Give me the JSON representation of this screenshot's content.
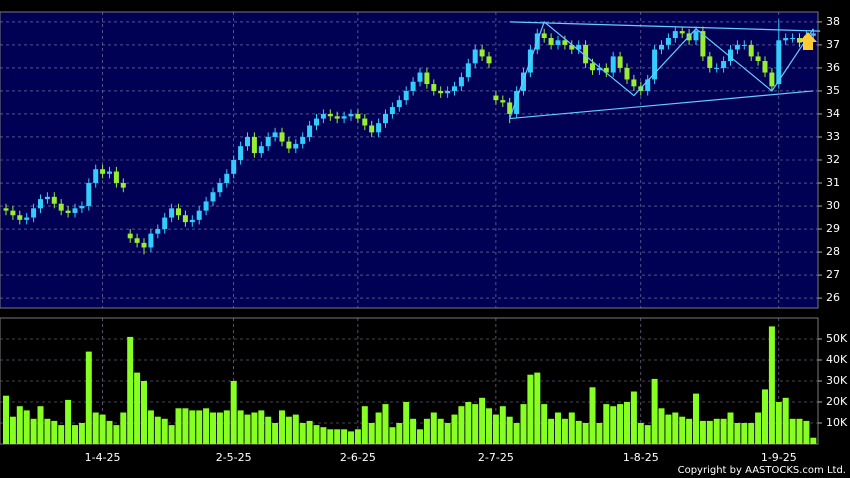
{
  "chart_data": [
    {
      "type": "candlestick",
      "open": [
        29.9,
        29.8,
        29.6,
        29.4,
        29.5,
        29.9,
        30.3,
        30.4,
        30.1,
        29.8,
        29.7,
        29.9,
        30.0,
        31.0,
        31.6,
        31.4,
        31.5,
        31.0,
        28.8,
        28.6,
        28.4,
        28.2,
        28.8,
        29.0,
        29.5,
        29.9,
        29.6,
        29.3,
        29.4,
        29.8,
        30.2,
        30.6,
        31.0,
        31.4,
        32.0,
        32.6,
        33.0,
        32.3,
        32.6,
        33.0,
        33.2,
        32.8,
        32.5,
        32.7,
        33.0,
        33.5,
        33.8,
        34.0,
        33.9,
        33.8,
        33.9,
        34.0,
        33.8,
        33.5,
        33.2,
        33.6,
        34.0,
        34.3,
        34.6,
        35.0,
        35.4,
        35.8,
        35.3,
        35.0,
        34.9,
        35.0,
        35.2,
        35.6,
        36.2,
        36.8,
        36.5,
        34.8,
        34.6,
        34.5,
        34.0,
        35.0,
        35.8,
        36.8,
        37.5,
        37.3,
        37.0,
        37.2,
        37.0,
        36.8,
        37.0,
        36.2,
        35.9,
        36.0,
        35.8,
        36.5,
        36.0,
        35.5,
        35.2,
        35.0,
        35.5,
        36.8,
        37.0,
        37.3,
        37.6,
        37.5,
        37.2,
        37.6,
        36.5,
        36.0,
        36.0,
        36.3,
        36.8,
        37.0,
        37.0,
        36.5,
        36.3,
        35.8,
        35.3,
        37.2,
        37.3,
        37.3,
        37.1,
        37.4
      ],
      "high": [
        30.1,
        30.0,
        29.8,
        29.7,
        30.1,
        30.5,
        30.6,
        30.6,
        30.3,
        30.0,
        30.1,
        30.2,
        31.2,
        31.8,
        31.8,
        31.7,
        31.7,
        31.2,
        29.0,
        28.8,
        28.6,
        29.0,
        29.2,
        29.7,
        30.1,
        30.1,
        29.8,
        29.6,
        30.0,
        30.4,
        30.8,
        31.2,
        31.6,
        32.2,
        32.8,
        33.2,
        33.2,
        32.8,
        33.2,
        33.4,
        33.4,
        33.0,
        32.9,
        33.2,
        33.7,
        34.0,
        34.2,
        34.2,
        34.1,
        34.1,
        34.2,
        34.2,
        34.0,
        33.7,
        33.8,
        34.2,
        34.5,
        34.8,
        35.2,
        35.6,
        36.0,
        36.0,
        35.5,
        35.2,
        35.2,
        35.4,
        35.8,
        36.4,
        37.0,
        37.0,
        36.7,
        35.0,
        34.8,
        34.7,
        35.2,
        36.0,
        37.0,
        37.7,
        37.7,
        37.5,
        37.4,
        37.4,
        37.2,
        37.2,
        37.2,
        36.4,
        36.2,
        36.2,
        36.7,
        36.7,
        36.2,
        35.7,
        35.4,
        35.7,
        37.0,
        37.2,
        37.5,
        37.8,
        37.8,
        37.7,
        37.8,
        37.8,
        36.7,
        36.2,
        36.5,
        37.0,
        37.2,
        37.2,
        37.2,
        36.7,
        36.5,
        36.0,
        38.1,
        37.5,
        37.5,
        37.5,
        37.6,
        37.7
      ],
      "low": [
        29.6,
        29.4,
        29.2,
        29.2,
        29.3,
        29.7,
        30.1,
        29.9,
        29.6,
        29.5,
        29.5,
        29.7,
        29.8,
        30.8,
        31.2,
        31.2,
        30.8,
        30.6,
        28.4,
        28.2,
        27.9,
        28.0,
        28.6,
        28.8,
        29.3,
        29.4,
        29.1,
        29.1,
        29.2,
        29.6,
        30.0,
        30.4,
        30.8,
        31.2,
        31.8,
        32.4,
        32.1,
        32.1,
        32.4,
        32.8,
        32.6,
        32.3,
        32.3,
        32.5,
        32.8,
        33.3,
        33.6,
        33.7,
        33.6,
        33.6,
        33.7,
        33.6,
        33.3,
        33.0,
        33.0,
        33.4,
        33.8,
        34.1,
        34.4,
        34.8,
        35.2,
        35.1,
        34.8,
        34.7,
        34.7,
        34.8,
        35.0,
        35.4,
        36.0,
        36.3,
        36.0,
        34.4,
        34.3,
        33.6,
        33.8,
        34.8,
        35.6,
        36.6,
        37.1,
        36.8,
        36.8,
        36.8,
        36.6,
        36.6,
        36.0,
        35.7,
        35.7,
        35.6,
        35.6,
        35.8,
        35.3,
        35.0,
        34.8,
        34.8,
        35.3,
        36.6,
        36.8,
        37.1,
        37.3,
        37.0,
        37.0,
        36.3,
        35.8,
        35.8,
        35.8,
        36.1,
        36.6,
        36.8,
        36.3,
        36.1,
        35.6,
        35.0,
        35.1,
        37.0,
        37.1,
        36.9,
        36.9,
        37.2
      ],
      "close": [
        29.8,
        29.6,
        29.4,
        29.5,
        29.9,
        30.3,
        30.4,
        30.1,
        29.8,
        29.7,
        29.9,
        30.0,
        31.0,
        31.6,
        31.4,
        31.5,
        31.0,
        30.8,
        28.6,
        28.4,
        28.2,
        28.8,
        29.0,
        29.5,
        29.9,
        29.6,
        29.3,
        29.4,
        29.8,
        30.2,
        30.6,
        31.0,
        31.4,
        32.0,
        32.6,
        33.0,
        32.3,
        32.6,
        33.0,
        33.2,
        32.8,
        32.5,
        32.7,
        33.0,
        33.5,
        33.8,
        34.0,
        33.9,
        33.8,
        33.9,
        34.0,
        33.8,
        33.5,
        33.2,
        33.6,
        34.0,
        34.3,
        34.6,
        35.0,
        35.4,
        35.8,
        35.3,
        35.0,
        34.9,
        35.0,
        35.2,
        35.6,
        36.2,
        36.8,
        36.5,
        36.2,
        34.6,
        34.5,
        34.0,
        35.0,
        35.8,
        36.8,
        37.5,
        37.3,
        37.0,
        37.2,
        37.0,
        36.8,
        37.0,
        36.2,
        35.9,
        36.0,
        35.8,
        36.5,
        36.0,
        35.5,
        35.2,
        35.0,
        35.5,
        36.8,
        37.0,
        37.3,
        37.6,
        37.5,
        37.2,
        37.6,
        36.5,
        36.0,
        36.0,
        36.3,
        36.8,
        37.0,
        37.0,
        36.5,
        36.3,
        35.8,
        35.2,
        37.2,
        37.3,
        37.3,
        37.1,
        37.4,
        37.5
      ],
      "up_color": "#33ccff",
      "down_color": "#99ee33",
      "ylim": [
        25.57,
        38.43
      ],
      "yticks": [
        26,
        27,
        28,
        29,
        30,
        31,
        32,
        33,
        34,
        35,
        36,
        37,
        38
      ],
      "grid": true,
      "lines": [
        {
          "color": "#66ccff",
          "x": [
            73,
            118
          ],
          "y": [
            38.0,
            37.6
          ]
        },
        {
          "color": "#66ccff",
          "x": [
            73,
            117
          ],
          "y": [
            33.8,
            35.0
          ]
        },
        {
          "color": "#66ccff",
          "x": [
            73,
            78,
            91,
            100,
            111,
            117
          ],
          "y": [
            33.8,
            38.0,
            34.8,
            37.7,
            35.0,
            37.7
          ]
        }
      ]
    },
    {
      "type": "bar",
      "categories": [
        null,
        null,
        null,
        null,
        null,
        null,
        null,
        null,
        null,
        null,
        null,
        null,
        null,
        null,
        "1-4-25",
        null,
        null,
        null,
        null,
        null,
        null,
        null,
        null,
        null,
        null,
        null,
        null,
        null,
        null,
        null,
        null,
        null,
        null,
        "2-5-25",
        null,
        null,
        null,
        null,
        null,
        null,
        null,
        null,
        null,
        null,
        null,
        null,
        null,
        null,
        null,
        null,
        null,
        "2-6-25",
        null,
        null,
        null,
        null,
        null,
        null,
        null,
        null,
        null,
        null,
        null,
        null,
        null,
        null,
        null,
        null,
        null,
        null,
        null,
        "2-7-25",
        null,
        null,
        null,
        null,
        null,
        null,
        null,
        null,
        null,
        null,
        null,
        null,
        null,
        null,
        null,
        null,
        null,
        null,
        null,
        null,
        "1-8-25",
        null,
        null,
        null,
        null,
        null,
        null,
        null,
        null,
        null,
        null,
        null,
        null,
        null,
        null,
        null,
        null,
        null,
        null,
        null,
        "1-9-25",
        null,
        null,
        null,
        null,
        null
      ],
      "values": [
        23000,
        13000,
        18000,
        16000,
        12000,
        18000,
        12000,
        11000,
        9000,
        21000,
        9000,
        10000,
        44000,
        15000,
        14000,
        11000,
        9000,
        15000,
        51000,
        34000,
        30000,
        16000,
        13000,
        12000,
        9000,
        17000,
        17000,
        16000,
        16000,
        17000,
        15000,
        15000,
        16000,
        30000,
        16000,
        14000,
        15000,
        16000,
        13000,
        10000,
        16000,
        13000,
        14000,
        10000,
        11000,
        9000,
        8000,
        7000,
        7000,
        7000,
        6000,
        7000,
        18000,
        10000,
        15000,
        19000,
        8000,
        10000,
        20000,
        12000,
        7000,
        12000,
        15000,
        12000,
        10000,
        14000,
        18000,
        20000,
        19000,
        22000,
        17000,
        14000,
        18000,
        13000,
        10000,
        19000,
        33000,
        34000,
        19000,
        12000,
        15000,
        12000,
        15000,
        11000,
        10000,
        27000,
        10000,
        19000,
        18000,
        19000,
        20000,
        25000,
        10000,
        9000,
        31000,
        17000,
        14000,
        15000,
        13000,
        12000,
        24000,
        11000,
        11000,
        12000,
        12000,
        15000,
        10000,
        10000,
        10000,
        15000,
        26000,
        56000,
        20000,
        22000,
        12000,
        12000,
        11000,
        3000
      ],
      "color": "#88ff22",
      "ylim": [
        0,
        60000
      ],
      "yticks": [
        {
          "value": 10000,
          "label": "10K"
        },
        {
          "value": 20000,
          "label": "20K"
        },
        {
          "value": 30000,
          "label": "30K"
        },
        {
          "value": 40000,
          "label": "40K"
        },
        {
          "value": 50000,
          "label": "50K"
        }
      ],
      "grid": true
    }
  ],
  "copyright": "Copyright by AASTOCKS.com Ltd."
}
